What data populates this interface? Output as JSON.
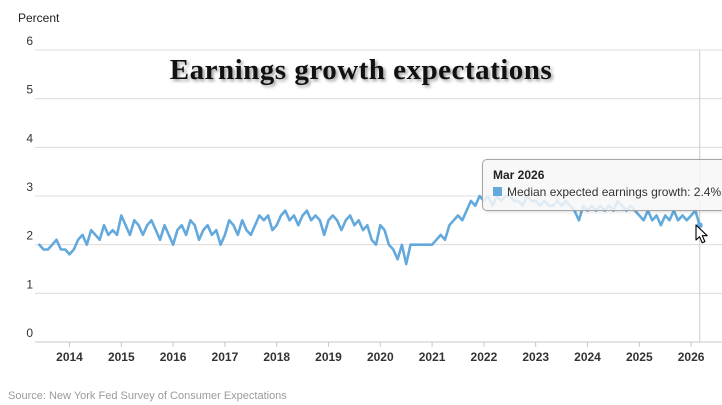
{
  "header": {
    "unit_label": "Percent",
    "title": "Earnings growth expectations"
  },
  "footer": {
    "source": "Source: New York Fed Survey of Consumer Expectations"
  },
  "tooltip": {
    "title": "Mar 2026",
    "body": "Median expected earnings growth: 2.4%",
    "marker_color": "#64a9dc"
  },
  "colors": {
    "series_line": "#64a9dc",
    "gridline": "#dcdcdc",
    "axis_line": "#c8c8c8",
    "crosshair": "#cccccc",
    "axis_label": "#333333"
  },
  "chart_data": {
    "type": "line",
    "title": "Earnings growth expectations",
    "ylabel": "Percent",
    "xlabel": "",
    "ylim": [
      0,
      6
    ],
    "yticks": [
      0,
      1,
      2,
      3,
      4,
      5,
      6
    ],
    "xticks_years": [
      2014,
      2015,
      2016,
      2017,
      2018,
      2019,
      2020,
      2021,
      2022,
      2023,
      2024,
      2025,
      2026
    ],
    "xlim": [
      "2013-06",
      "2026-03"
    ],
    "grid": "horizontal",
    "legend_position": "none",
    "hover_point": {
      "label": "Mar 2026",
      "value": 2.4
    },
    "series": [
      {
        "name": "Median expected earnings growth",
        "color": "#64a9dc",
        "frequency": "monthly",
        "start_month": "2013-06",
        "values": [
          2.0,
          1.9,
          1.9,
          2.0,
          2.1,
          1.9,
          1.9,
          1.8,
          1.9,
          2.1,
          2.2,
          2.0,
          2.3,
          2.2,
          2.1,
          2.4,
          2.2,
          2.3,
          2.2,
          2.6,
          2.4,
          2.2,
          2.5,
          2.4,
          2.2,
          2.4,
          2.5,
          2.3,
          2.1,
          2.4,
          2.2,
          2.0,
          2.3,
          2.4,
          2.2,
          2.5,
          2.4,
          2.1,
          2.3,
          2.4,
          2.2,
          2.3,
          2.0,
          2.2,
          2.5,
          2.4,
          2.2,
          2.5,
          2.3,
          2.2,
          2.4,
          2.6,
          2.5,
          2.6,
          2.3,
          2.4,
          2.6,
          2.7,
          2.5,
          2.6,
          2.4,
          2.6,
          2.7,
          2.5,
          2.6,
          2.5,
          2.2,
          2.5,
          2.6,
          2.5,
          2.3,
          2.5,
          2.6,
          2.4,
          2.5,
          2.3,
          2.4,
          2.1,
          2.0,
          2.4,
          2.3,
          2.0,
          1.9,
          1.7,
          2.0,
          1.6,
          2.0,
          2.0,
          2.0,
          2.0,
          2.0,
          2.0,
          2.1,
          2.2,
          2.1,
          2.4,
          2.5,
          2.6,
          2.5,
          2.7,
          2.9,
          2.8,
          3.0,
          2.9,
          3.0,
          2.8,
          3.0,
          2.9,
          3.0,
          3.0,
          2.9,
          2.9,
          2.8,
          3.0,
          2.9,
          2.9,
          2.8,
          2.9,
          2.8,
          2.8,
          2.9,
          2.8,
          2.9,
          2.8,
          2.7,
          2.5,
          2.8,
          2.7,
          2.8,
          2.7,
          2.8,
          2.7,
          2.8,
          2.7,
          2.9,
          2.8,
          2.7,
          2.8,
          2.7,
          2.6,
          2.5,
          2.7,
          2.5,
          2.6,
          2.4,
          2.6,
          2.5,
          2.7,
          2.5,
          2.6,
          2.5,
          2.6,
          2.7,
          2.4
        ]
      }
    ]
  }
}
